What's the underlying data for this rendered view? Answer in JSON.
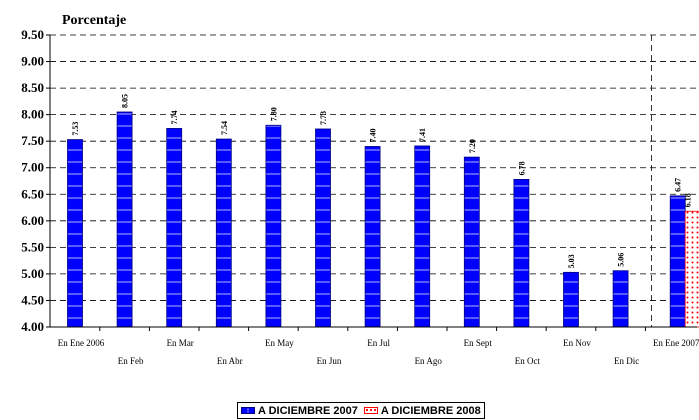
{
  "chart_data": {
    "type": "bar",
    "ylabel": "Porcentaje",
    "ylim": [
      4.0,
      9.5
    ],
    "yticks": [
      "4.00",
      "4.50",
      "5.00",
      "5.50",
      "6.00",
      "6.50",
      "7.00",
      "7.50",
      "8.00",
      "8.50",
      "9.00",
      "9.50"
    ],
    "grid": "horizontal dashed",
    "categories": [
      "En Ene 2006",
      "En Feb",
      "En Mar",
      "En Abr",
      "En May",
      "En Jun",
      "En Jul",
      "En Ago",
      "En Sept",
      "En Oct",
      "En Nov",
      "En Dic",
      "En Ene 2007"
    ],
    "series": [
      {
        "name": "A DICIEMBRE 2007",
        "color": "#0000ff",
        "values": [
          7.53,
          8.05,
          7.74,
          7.54,
          7.8,
          7.73,
          7.4,
          7.41,
          7.2,
          6.78,
          5.03,
          5.06,
          6.47
        ],
        "labels": [
          "7.53",
          "8.05",
          "7.74",
          "7.54",
          "7.80",
          "7.73",
          "7.40",
          "7.41",
          "7.20",
          "6.78",
          "5.03",
          "5.06",
          "6.47"
        ]
      },
      {
        "name": "A DICIEMBRE 2008",
        "color": "#ff0000",
        "values": [
          null,
          null,
          null,
          null,
          null,
          null,
          null,
          null,
          null,
          null,
          null,
          null,
          6.18
        ],
        "labels": [
          null,
          null,
          null,
          null,
          null,
          null,
          null,
          null,
          null,
          null,
          null,
          null,
          "6.18"
        ]
      }
    ],
    "legend_position": "bottom-center"
  },
  "legend": {
    "item1": "A DICIEMBRE 2007",
    "item2": "A DICIEMBRE 2008"
  }
}
